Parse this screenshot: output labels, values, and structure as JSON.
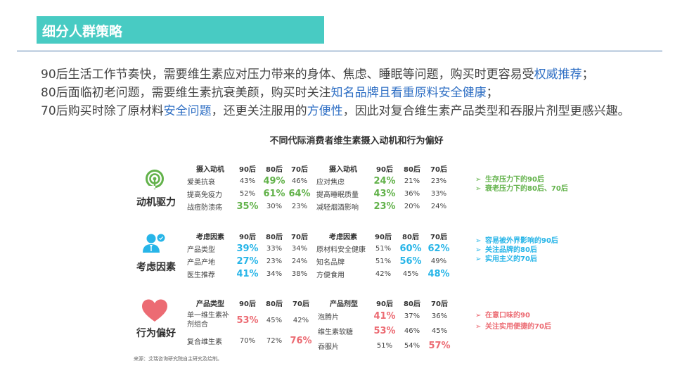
{
  "header": {
    "title": "细分人群策略"
  },
  "intro": {
    "lines": [
      {
        "parts": [
          {
            "text": "90后生活工作节奏快，需要维生素应对压力带来的身体、焦虑、睡眠等问题，购买时更容易受",
            "highlight": false
          },
          {
            "text": "权威推荐",
            "highlight": true
          },
          {
            "text": "；",
            "highlight": false
          }
        ]
      },
      {
        "parts": [
          {
            "text": "80后面临初老问题，需要维生素抗衰美颜，购买时关注",
            "highlight": false
          },
          {
            "text": "知名品牌且看重原料安全健康",
            "highlight": true
          },
          {
            "text": "；",
            "highlight": false
          }
        ]
      },
      {
        "parts": [
          {
            "text": "70后购买时除了原材料",
            "highlight": false
          },
          {
            "text": "安全问题",
            "highlight": true
          },
          {
            "text": "，还更关注服用的",
            "highlight": false
          },
          {
            "text": "方便性",
            "highlight": true
          },
          {
            "text": "，因此对复合维生素产品类型和吞服片剂型更感兴趣。",
            "highlight": false
          }
        ]
      }
    ],
    "highlight_color": "#2f6fc4"
  },
  "chart": {
    "title": "不同代际消费者维生素摄入动机和行为偏好"
  },
  "sections": [
    {
      "label": "动机驱力",
      "icon": "signal-antenna-icon",
      "color": "#62b24a",
      "left_table": {
        "headers": [
          "摄入动机",
          "90后",
          "80后",
          "70后"
        ],
        "rows": [
          {
            "label": "爱美抗衰",
            "values": [
              "43%",
              "49%",
              "46%"
            ],
            "hi": [
              false,
              true,
              false
            ]
          },
          {
            "label": "提高免疫力",
            "values": [
              "52%",
              "61%",
              "64%"
            ],
            "hi": [
              false,
              true,
              true
            ]
          },
          {
            "label": "战痘防溃疡",
            "values": [
              "35%",
              "30%",
              "23%"
            ],
            "hi": [
              true,
              false,
              false
            ]
          }
        ]
      },
      "right_table": {
        "headers": [
          "摄入动机",
          "90后",
          "80后",
          "70后"
        ],
        "rows": [
          {
            "label": "应对焦虑",
            "values": [
              "24%",
              "21%",
              "23%"
            ],
            "hi": [
              true,
              false,
              false
            ]
          },
          {
            "label": "提高睡眠质量",
            "values": [
              "43%",
              "36%",
              "33%"
            ],
            "hi": [
              true,
              false,
              false
            ]
          },
          {
            "label": "减轻烟酒影响",
            "values": [
              "23%",
              "20%",
              "24%"
            ],
            "hi": [
              true,
              false,
              false
            ]
          }
        ]
      },
      "notes": [
        "生存压力下的90后",
        "衰老压力下的80后、70后"
      ]
    },
    {
      "label": "考虑因素",
      "icon": "person-chat-icon",
      "color": "#27b5e8",
      "left_table": {
        "headers": [
          "考虑因素",
          "90后",
          "80后",
          "70后"
        ],
        "rows": [
          {
            "label": "产品类型",
            "values": [
              "39%",
              "33%",
              "34%"
            ],
            "hi": [
              true,
              false,
              false
            ]
          },
          {
            "label": "产品产地",
            "values": [
              "27%",
              "23%",
              "24%"
            ],
            "hi": [
              true,
              false,
              false
            ]
          },
          {
            "label": "医生推荐",
            "values": [
              "41%",
              "34%",
              "38%"
            ],
            "hi": [
              true,
              false,
              false
            ]
          }
        ]
      },
      "right_table": {
        "headers": [
          "考虑因素",
          "90后",
          "80后",
          "70后"
        ],
        "rows": [
          {
            "label": "原材料安全健康",
            "values": [
              "51%",
              "60%",
              "62%"
            ],
            "hi": [
              false,
              true,
              true
            ]
          },
          {
            "label": "知名品牌",
            "values": [
              "51%",
              "56%",
              "49%"
            ],
            "hi": [
              false,
              true,
              false
            ]
          },
          {
            "label": "方便食用",
            "values": [
              "42%",
              "45%",
              "48%"
            ],
            "hi": [
              false,
              false,
              true
            ]
          }
        ]
      },
      "notes": [
        "容易被外界影响的90后",
        "关注品牌的80后",
        "实用主义的70后"
      ]
    },
    {
      "label": "行为偏好",
      "icon": "heart-icon",
      "color": "#ec6b73",
      "left_table": {
        "headers": [
          "产品类型",
          "90后",
          "80后",
          "70后"
        ],
        "rows": [
          {
            "label": "单一维生素补剂组合",
            "values": [
              "53%",
              "45%",
              "42%"
            ],
            "hi": [
              true,
              false,
              false
            ]
          },
          {
            "label": "复合维生素",
            "values": [
              "70%",
              "72%",
              "76%"
            ],
            "hi": [
              false,
              false,
              true
            ]
          }
        ]
      },
      "right_table": {
        "headers": [
          "产品剂型",
          "90后",
          "80后",
          "70后"
        ],
        "rows": [
          {
            "label": "泡腾片",
            "values": [
              "41%",
              "37%",
              "36%"
            ],
            "hi": [
              true,
              false,
              false
            ]
          },
          {
            "label": "维生素软糖",
            "values": [
              "53%",
              "46%",
              "45%"
            ],
            "hi": [
              true,
              false,
              false
            ]
          },
          {
            "label": "吞服片",
            "values": [
              "51%",
              "54%",
              "57%"
            ],
            "hi": [
              false,
              false,
              true
            ]
          }
        ]
      },
      "notes": [
        "在意口味的90",
        "关注实用便捷的70后"
      ]
    }
  ],
  "note_arrow": "➢",
  "source": "来源：艾瑞咨询研究院自主研究及绘制。"
}
